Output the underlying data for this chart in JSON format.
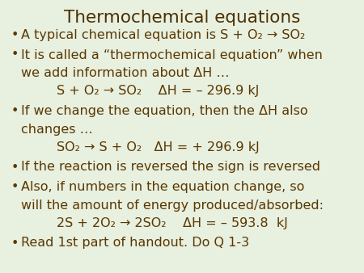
{
  "title": "Thermochemical equations",
  "title_color": "#4a3000",
  "title_fontsize": 15.5,
  "background_color": "#e8f0e0",
  "text_color": "#5a3800",
  "font_family": "DejaVu Sans",
  "bullet_lines": [
    {
      "type": "bullet",
      "text": "A typical chemical equation is S + O₂ → SO₂",
      "fontsize": 11.5
    },
    {
      "type": "bullet",
      "text": "It is called a “thermochemical equation” when",
      "fontsize": 11.5
    },
    {
      "type": "cont",
      "text": "we add information about ΔH …",
      "fontsize": 11.5
    },
    {
      "type": "indent",
      "text": "S + O₂ → SO₂    ΔH = – 296.9 kJ",
      "fontsize": 11.5
    },
    {
      "type": "bullet",
      "text": "If we change the equation, then the ΔH also",
      "fontsize": 11.5
    },
    {
      "type": "cont",
      "text": "changes …",
      "fontsize": 11.5
    },
    {
      "type": "indent",
      "text": "SO₂ → S + O₂   ΔH = + 296.9 kJ",
      "fontsize": 11.5
    },
    {
      "type": "bullet",
      "text": "If the reaction is reversed the sign is reversed",
      "fontsize": 11.5
    },
    {
      "type": "bullet",
      "text": "Also, if numbers in the equation change, so",
      "fontsize": 11.5
    },
    {
      "type": "cont",
      "text": "will the amount of energy produced/absorbed:",
      "fontsize": 11.5
    },
    {
      "type": "indent",
      "text": "2S + 2O₂ → 2SO₂    ΔH = – 593.8  kJ",
      "fontsize": 11.5
    },
    {
      "type": "bullet",
      "text": "Read 1st part of handout. Do Q 1-3",
      "fontsize": 11.5
    }
  ]
}
